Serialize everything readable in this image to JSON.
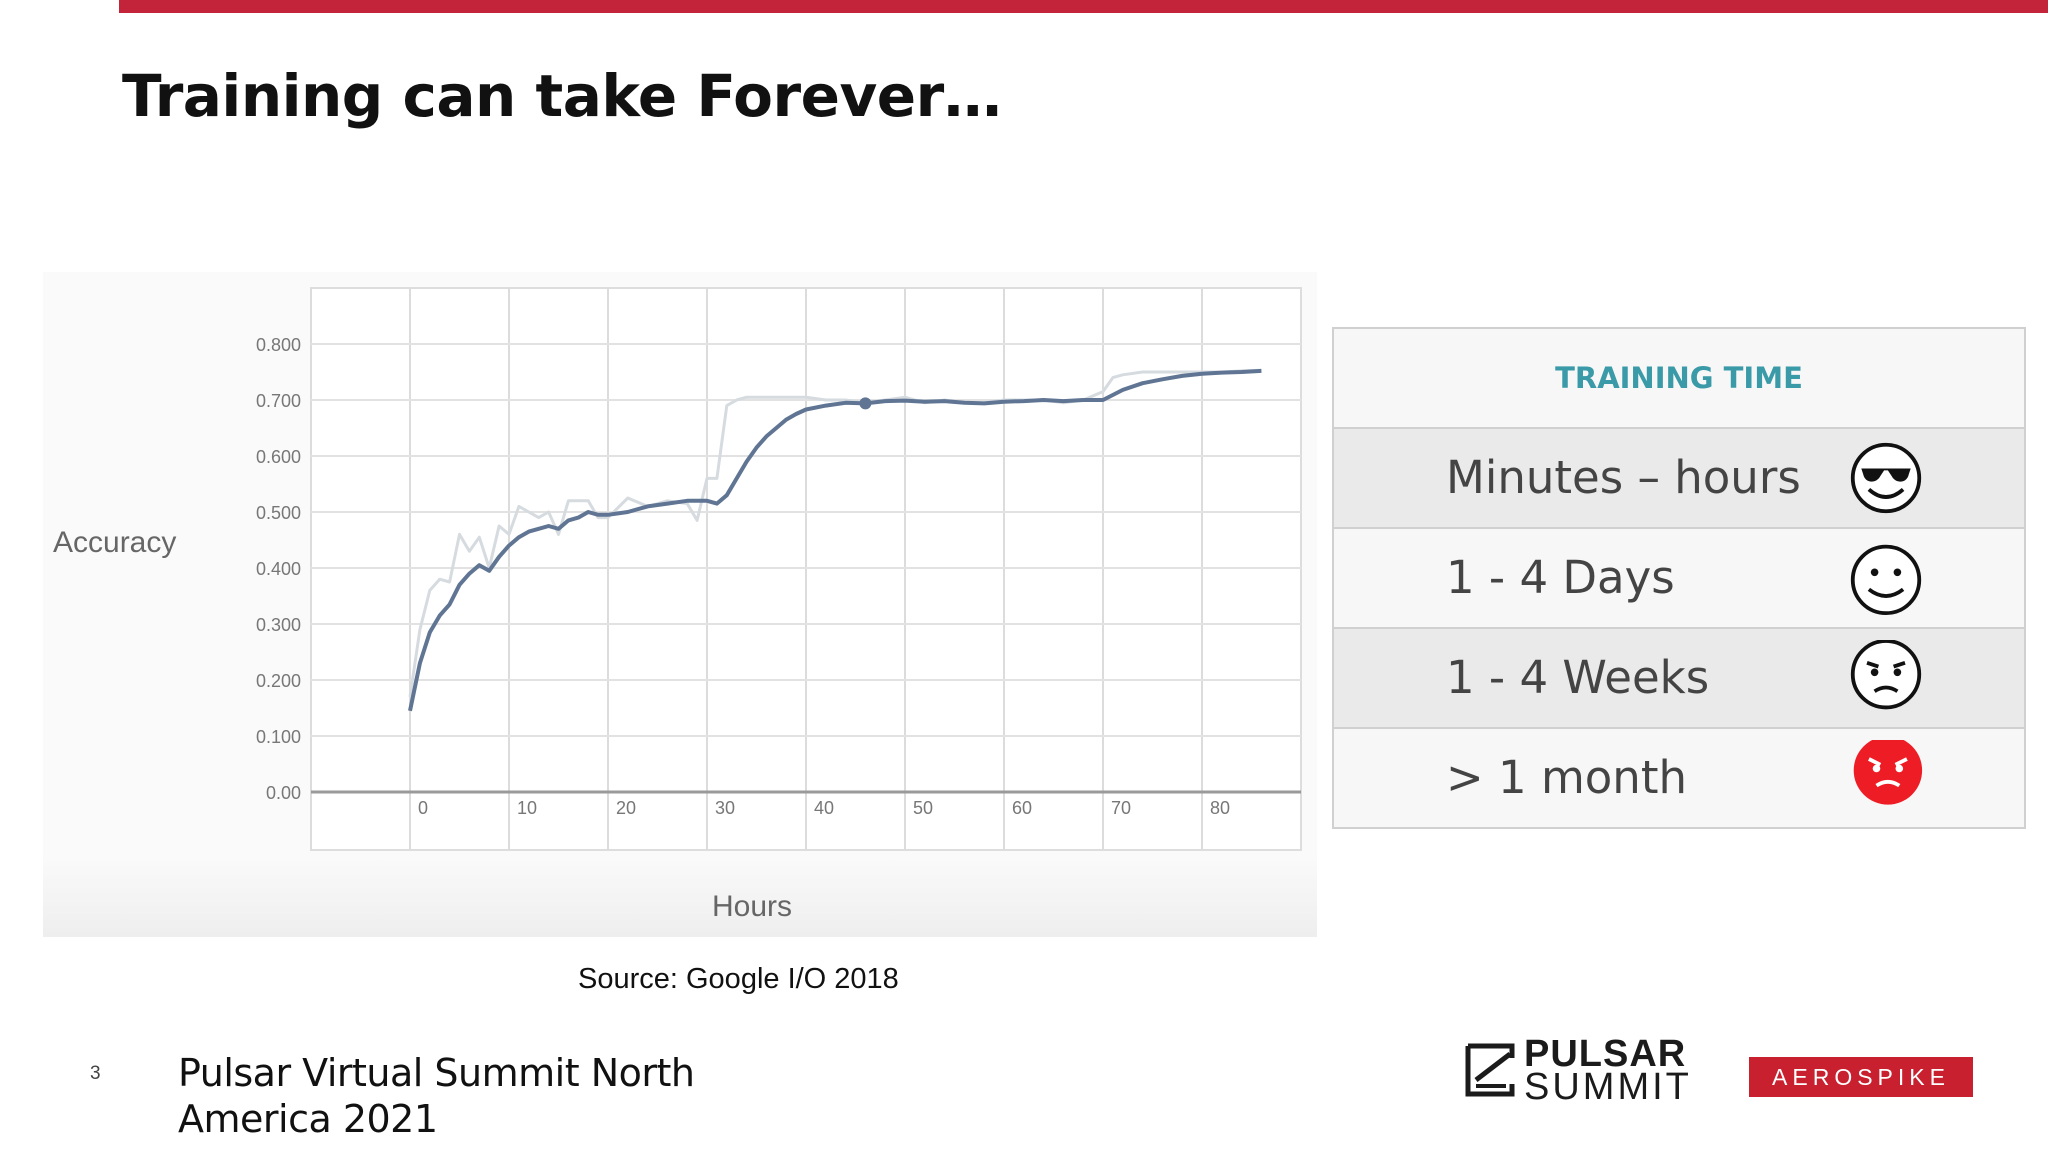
{
  "slide": {
    "title": "Training can take Forever…",
    "source": "Source: Google I/O 2018",
    "page_number": "3",
    "event_name": "Pulsar Virtual Summit North America 2021"
  },
  "colors": {
    "accent_bar": "#c3243a",
    "table_header": "#3a9aa8",
    "main_line": "#5f7593",
    "faint_line": "#d6dbe0"
  },
  "chart_data": {
    "type": "line",
    "title": "",
    "xlabel": "Hours",
    "ylabel": "Accuracy",
    "xlim": [
      -10,
      90
    ],
    "ylim": [
      0,
      0.8
    ],
    "x_ticks": [
      0,
      10,
      20,
      30,
      40,
      50,
      60,
      70,
      80
    ],
    "x_tick_labels": [
      "0",
      "10",
      "20",
      "30",
      "40",
      "50",
      "60",
      "70",
      "80"
    ],
    "y_ticks": [
      0,
      0.1,
      0.2,
      0.3,
      0.4,
      0.5,
      0.6,
      0.7,
      0.8
    ],
    "y_tick_labels": [
      "0.00",
      "0.100",
      "0.200",
      "0.300",
      "0.400",
      "0.500",
      "0.600",
      "0.700",
      "0.800"
    ],
    "grid": true,
    "series": [
      {
        "style": "smoothed",
        "x": [
          0,
          1,
          2,
          3,
          4,
          5,
          6,
          7,
          8,
          9,
          10,
          11,
          12,
          13,
          14,
          15,
          16,
          17,
          18,
          19,
          20,
          22,
          24,
          26,
          28,
          30,
          31,
          32,
          33,
          34,
          35,
          36,
          37,
          38,
          39,
          40,
          42,
          44,
          46,
          48,
          50,
          52,
          54,
          56,
          58,
          60,
          62,
          64,
          66,
          68,
          70,
          72,
          74,
          76,
          78,
          80,
          82,
          84,
          86
        ],
        "y": [
          0.145,
          0.23,
          0.285,
          0.315,
          0.335,
          0.37,
          0.39,
          0.405,
          0.395,
          0.42,
          0.44,
          0.455,
          0.465,
          0.47,
          0.475,
          0.47,
          0.485,
          0.49,
          0.5,
          0.495,
          0.495,
          0.5,
          0.51,
          0.515,
          0.52,
          0.52,
          0.515,
          0.53,
          0.56,
          0.59,
          0.615,
          0.635,
          0.65,
          0.665,
          0.675,
          0.683,
          0.69,
          0.695,
          0.694,
          0.698,
          0.699,
          0.697,
          0.698,
          0.695,
          0.694,
          0.697,
          0.698,
          0.7,
          0.698,
          0.7,
          0.7,
          0.718,
          0.73,
          0.737,
          0.743,
          0.747,
          0.749,
          0.75,
          0.752
        ],
        "marker": {
          "x": 46,
          "y": 0.694
        }
      },
      {
        "style": "raw",
        "x": [
          0,
          1,
          2,
          3,
          4,
          5,
          6,
          7,
          8,
          9,
          10,
          11,
          12,
          13,
          14,
          15,
          16,
          17,
          18,
          19,
          20,
          22,
          24,
          26,
          28,
          29,
          30,
          31,
          32,
          33,
          34,
          36,
          38,
          40,
          42,
          44,
          46,
          48,
          50,
          52,
          54,
          56,
          58,
          60,
          62,
          64,
          66,
          68,
          70,
          71,
          72,
          74,
          76,
          78,
          80,
          82,
          84,
          86
        ],
        "y": [
          0.17,
          0.29,
          0.36,
          0.38,
          0.375,
          0.46,
          0.43,
          0.455,
          0.4,
          0.475,
          0.46,
          0.51,
          0.5,
          0.49,
          0.5,
          0.46,
          0.52,
          0.52,
          0.52,
          0.49,
          0.49,
          0.525,
          0.51,
          0.52,
          0.515,
          0.485,
          0.56,
          0.56,
          0.69,
          0.7,
          0.705,
          0.705,
          0.705,
          0.705,
          0.7,
          0.7,
          0.695,
          0.7,
          0.705,
          0.695,
          0.7,
          0.695,
          0.695,
          0.7,
          0.7,
          0.7,
          0.695,
          0.7,
          0.715,
          0.74,
          0.745,
          0.75,
          0.75,
          0.75,
          0.75,
          0.75,
          0.752,
          0.753
        ]
      }
    ]
  },
  "training_table": {
    "header": "TRAINING TIME",
    "rows": [
      {
        "label": "Minutes – hours",
        "emoji": "cool-face-icon"
      },
      {
        "label": "1 - 4 Days",
        "emoji": "smiling-face-icon"
      },
      {
        "label": "1 - 4 Weeks",
        "emoji": "frowning-face-icon"
      },
      {
        "label": "> 1 month",
        "emoji": "angry-face-icon"
      }
    ]
  },
  "logos": {
    "pulsar_line1": "PULSAR",
    "pulsar_line2": "SUMMIT",
    "aerospike": "AEROSPIKE"
  }
}
